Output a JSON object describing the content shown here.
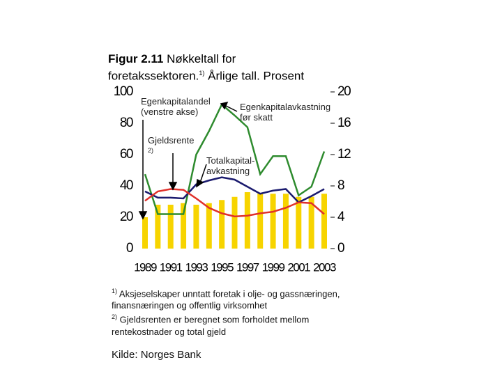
{
  "chart_data": {
    "type": "combo",
    "title": [
      "Figur 2.11",
      "Nøkkeltall for",
      "foretakssektoren.",
      "1)",
      "Årlige tall. Prosent"
    ],
    "categories": [
      "1989",
      null,
      "1991",
      null,
      "1993",
      null,
      "1995",
      null,
      "1997",
      null,
      "1999",
      null,
      "2001",
      null,
      "2003"
    ],
    "ylim": [
      0,
      100
    ],
    "yticks": [
      0,
      20,
      40,
      60,
      80,
      100
    ],
    "y2lim": [
      0,
      20
    ],
    "y2ticks": [
      0,
      4,
      8,
      12,
      16,
      20
    ],
    "series": [
      {
        "name": "Egenkapitalandel (venstre akse)",
        "type": "bar",
        "color": "#f7d400",
        "values": [
          20,
          28,
          28,
          29,
          28,
          29,
          31,
          33,
          36,
          35,
          35,
          35,
          33,
          33,
          35
        ]
      },
      {
        "name": "Egenkapitalavkastning før skatt",
        "type": "line",
        "axis": "y2",
        "color": "#2e8b2e",
        "values": [
          9.5,
          4.4,
          4.4,
          4.4,
          12,
          15,
          18.4,
          17,
          15.5,
          9.5,
          11.8,
          11.8,
          6.8,
          7.9,
          12.4
        ]
      },
      {
        "name": "Totalkapital-avkastning",
        "type": "line",
        "axis": "y2",
        "color": "#1a1a6e",
        "values": [
          7.3,
          6.5,
          6.5,
          6.4,
          8.2,
          8.7,
          9.1,
          8.8,
          7.9,
          7.0,
          7.4,
          7.6,
          5.9,
          6.7,
          7.6
        ]
      },
      {
        "name": "Gjeldsrente",
        "note": "2)",
        "type": "line",
        "axis": "y2",
        "color": "#e0302a",
        "values": [
          6.1,
          7.3,
          7.6,
          7.5,
          6.4,
          5.2,
          4.5,
          4.1,
          4.2,
          4.5,
          4.7,
          5.2,
          5.9,
          5.8,
          4.4
        ]
      }
    ],
    "footnotes": [
      {
        "mark": "1)",
        "text": "Aksjeselskaper unntatt foretak i olje- og gassnæringen, finansnæringen og offentlig virksomhet"
      },
      {
        "mark": "2)",
        "text": "Gjeldsrenten er beregnet som forholdet mellom rentekostnader og total gjeld"
      }
    ],
    "source": "Kilde: Norges Bank"
  }
}
